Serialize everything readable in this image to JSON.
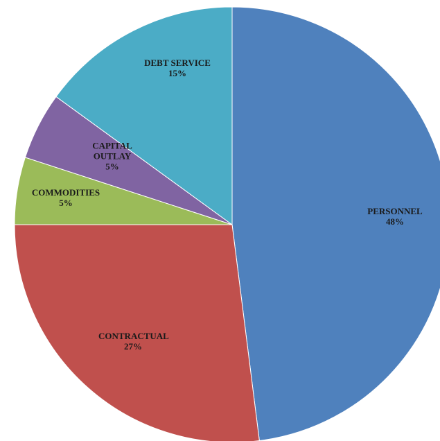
{
  "chart_data": {
    "type": "pie",
    "categories": [
      "PERSONNEL",
      "CONTRACTUAL",
      "COMMODITIES",
      "CAPITAL OUTLAY",
      "DEBT SERVICE"
    ],
    "values": [
      48,
      27,
      5,
      5,
      15
    ],
    "value_labels": [
      "48%",
      "27%",
      "5%",
      "5%",
      "15%"
    ],
    "colors": [
      "#4f81bd",
      "#c0504d",
      "#9bbb59",
      "#8064a2",
      "#4bacc6"
    ]
  }
}
